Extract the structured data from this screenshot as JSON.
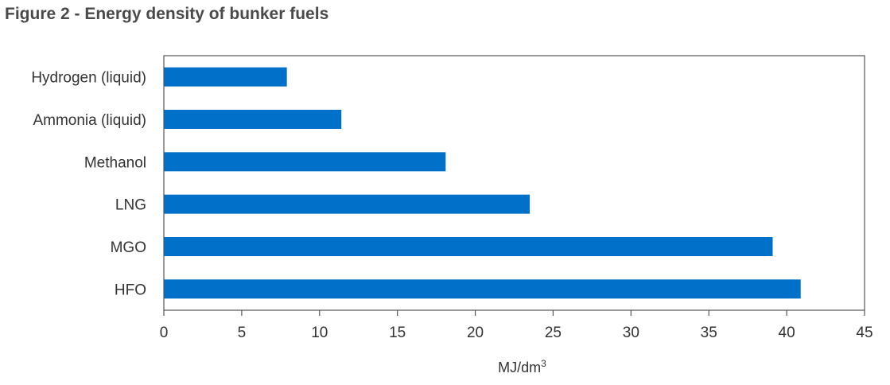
{
  "figure": {
    "title": "Figure 2 - Energy density of bunker fuels"
  },
  "chart_data": {
    "type": "bar",
    "orientation": "horizontal",
    "title": "Figure 2 - Energy density of bunker fuels",
    "categories": [
      "Hydrogen (liquid)",
      "Ammonia (liquid)",
      "Methanol",
      "LNG",
      "MGO",
      "HFO"
    ],
    "values": [
      7.9,
      11.4,
      18.1,
      23.5,
      39.1,
      40.9
    ],
    "xlabel": "MJ/dm",
    "xlabel_superscript": "3",
    "ylabel": "",
    "xlim": [
      0,
      45
    ],
    "xticks": [
      0,
      5,
      10,
      15,
      20,
      25,
      30,
      35,
      40,
      45
    ],
    "grid": false,
    "legend": "none",
    "bar_color": "#0070C8",
    "axis_color": "#555555"
  }
}
